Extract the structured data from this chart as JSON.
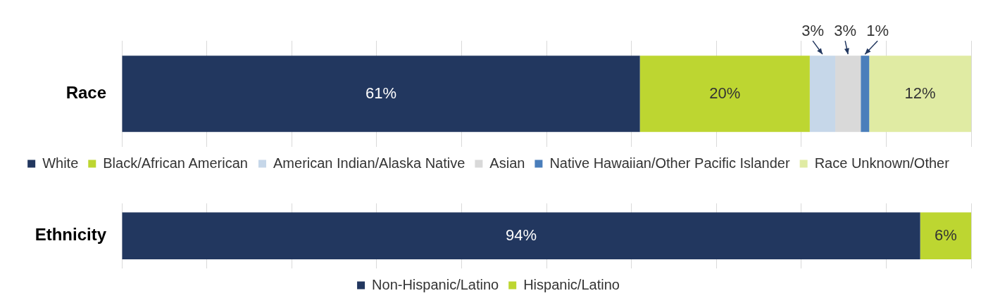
{
  "chart_data": [
    {
      "type": "bar",
      "orientation": "horizontal",
      "stacked": true,
      "categories": [
        "Race"
      ],
      "xlim": [
        0,
        100
      ],
      "xticks": [
        {
          "value": 0,
          "label": null
        },
        {
          "value": 10,
          "label": null
        },
        {
          "value": 20,
          "label": null
        },
        {
          "value": 30,
          "label": null
        },
        {
          "value": 40,
          "label": null
        },
        {
          "value": 50,
          "label": null
        },
        {
          "value": 60,
          "label": null
        },
        {
          "value": 70,
          "label": null
        },
        {
          "value": 80,
          "label": null
        },
        {
          "value": 90,
          "label": null
        },
        {
          "value": 100,
          "label": null
        }
      ],
      "grid": "x",
      "tick_labels": "y",
      "legend": "bottom",
      "series": [
        {
          "name": "White",
          "color": "#22375f",
          "values": [
            61
          ],
          "value_labels": [
            "61%"
          ]
        },
        {
          "name": "Black/African American",
          "color": "#bdd631",
          "values": [
            20
          ],
          "value_labels": [
            "20%"
          ]
        },
        {
          "name": "American Indian/Alaska Native",
          "color": "#c6d7e9",
          "values": [
            3
          ],
          "value_labels": [
            "3%"
          ]
        },
        {
          "name": "Asian",
          "color": "#d9d9d9",
          "values": [
            3
          ],
          "value_labels": [
            "3%"
          ]
        },
        {
          "name": "Native Hawaiian/Other Pacific Islander",
          "color": "#4a7ebb",
          "values": [
            1
          ],
          "value_labels": [
            "1%"
          ]
        },
        {
          "name": "Race Unknown/Other",
          "color": "#e0eba3",
          "values": [
            12
          ],
          "value_labels": [
            "12%"
          ]
        }
      ]
    },
    {
      "type": "bar",
      "orientation": "horizontal",
      "stacked": true,
      "categories": [
        "Ethnicity"
      ],
      "xlim": [
        0,
        100
      ],
      "xticks": [
        {
          "value": 0,
          "label": null
        },
        {
          "value": 10,
          "label": null
        },
        {
          "value": 20,
          "label": null
        },
        {
          "value": 30,
          "label": null
        },
        {
          "value": 40,
          "label": null
        },
        {
          "value": 50,
          "label": null
        },
        {
          "value": 60,
          "label": null
        },
        {
          "value": 70,
          "label": null
        },
        {
          "value": 80,
          "label": null
        },
        {
          "value": 90,
          "label": null
        },
        {
          "value": 100,
          "label": null
        }
      ],
      "grid": "x",
      "tick_labels": "y",
      "legend": "bottom",
      "series": [
        {
          "name": "Non-Hispanic/Latino",
          "color": "#22375f",
          "values": [
            94
          ],
          "value_labels": [
            "94%"
          ]
        },
        {
          "name": "Hispanic/Latino",
          "color": "#bdd631",
          "values": [
            6
          ],
          "value_labels": [
            "6%"
          ]
        }
      ]
    }
  ]
}
